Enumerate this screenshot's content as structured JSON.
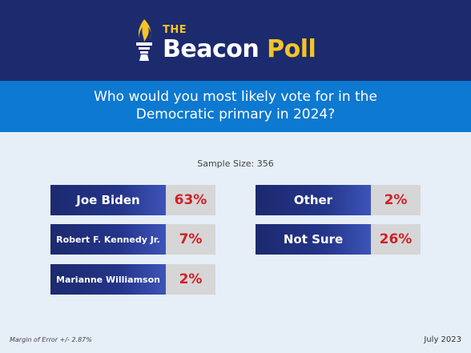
{
  "header": {
    "logo_the": "THE",
    "logo_name": "Beacon",
    "logo_accent": "Poll",
    "colors": {
      "navy": "#1c2a6e",
      "gold": "#f3c427",
      "blue": "#0d79d0",
      "red": "#d11f26"
    }
  },
  "question": {
    "line1": "Who would you most likely vote for in the",
    "line2": "Democratic primary in 2024?"
  },
  "sample_size": "Sample Size: 356",
  "chart_data": {
    "type": "table",
    "title": "Who would you most likely vote for in the Democratic primary in 2024?",
    "categories": [
      "Joe Biden",
      "Robert F. Kennedy Jr.",
      "Marianne Williamson",
      "Other",
      "Not Sure"
    ],
    "values": [
      63,
      7,
      2,
      2,
      26
    ],
    "value_labels": [
      "63%",
      "7%",
      "2%",
      "2%",
      "26%"
    ]
  },
  "footer": {
    "margin_of_error": "Margin of Error +/- 2.87%",
    "date": "July 2023"
  }
}
